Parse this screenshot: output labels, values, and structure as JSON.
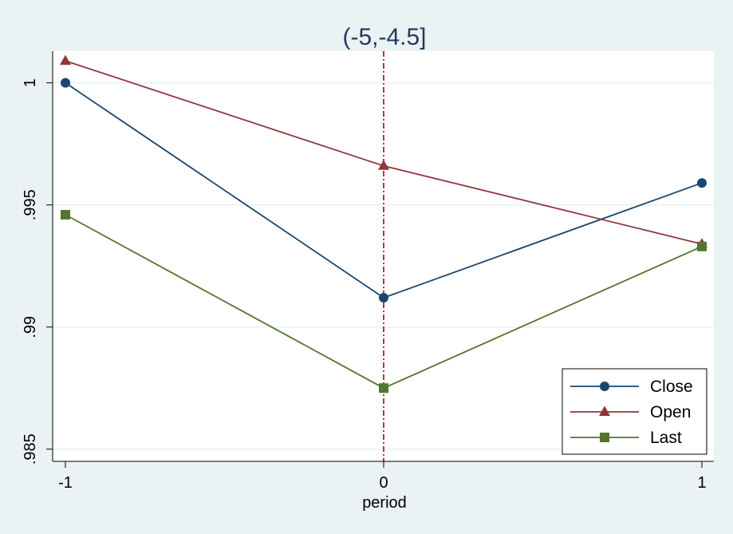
{
  "chart_data": {
    "type": "line",
    "title": "(-5,-4.5]",
    "xlabel": "period",
    "ylabel": "",
    "x": [
      -1,
      0,
      1
    ],
    "x_ticks": [
      "-1",
      "0",
      "1"
    ],
    "xlim": [
      -1,
      1
    ],
    "ylim": [
      0.9845,
      1.0013
    ],
    "y_ticks": [
      {
        "value": 0.985,
        "label": ".985"
      },
      {
        "value": 0.99,
        "label": ".99"
      },
      {
        "value": 0.995,
        "label": ".995"
      },
      {
        "value": 1.0,
        "label": "1"
      }
    ],
    "grid": true,
    "reference_line": {
      "x": 0,
      "color": "#c0143c",
      "style": "dash-dot"
    },
    "legend_position": "bottom-right",
    "series": [
      {
        "name": "Close",
        "values": [
          1.0,
          0.9912,
          0.9959
        ],
        "color": "#1a476f",
        "marker": "circle"
      },
      {
        "name": "Open",
        "values": [
          1.0009,
          0.9966,
          0.9934
        ],
        "color": "#90353b",
        "marker": "triangle"
      },
      {
        "name": "Last",
        "values": [
          0.9946,
          0.9875,
          0.9933
        ],
        "color": "#55752f",
        "marker": "square"
      }
    ]
  }
}
